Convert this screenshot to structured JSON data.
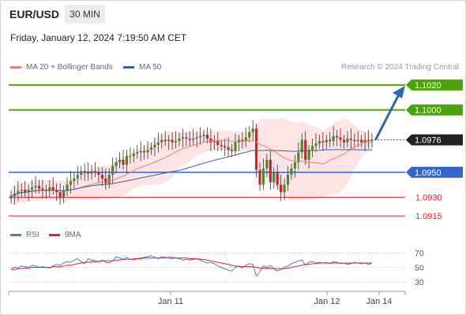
{
  "header": {
    "symbol": "EUR/USD",
    "timeframe": "30 MIN",
    "datetime": "Friday, January 12, 2024 7:19:50 AM CET"
  },
  "legend": {
    "ma20": "MA 20 + Bollinger Bands",
    "ma50": "MA 50",
    "credit": "Research © 2024 Trading Central"
  },
  "rsi_legend": {
    "rsi": "RSI",
    "ma9": "9MA"
  },
  "colors": {
    "green": "#4da30c",
    "blue": "#3366cc",
    "red": "#e8202a",
    "ma20": "#e8807a",
    "ma50": "#3f5f9c",
    "band": "#fde3e3",
    "candle_up": "#4a8a2a",
    "candle_down": "#c62828",
    "current": "#222222",
    "arrow": "#2f66b0"
  },
  "chart_data": [
    {
      "type": "candlestick",
      "title": "EUR/USD 30 MIN",
      "x_ticks": [
        "Jan 11",
        "Jan 12",
        "Jan 14"
      ],
      "ylim": [
        1.0905,
        1.1025
      ],
      "levels": [
        {
          "label": "1.1020",
          "value": 1.102,
          "kind": "resistance"
        },
        {
          "label": "1.1000",
          "value": 1.1,
          "kind": "resistance"
        },
        {
          "label": "1.0976",
          "value": 1.0976,
          "kind": "current"
        },
        {
          "label": "1.0950",
          "value": 1.095,
          "kind": "pivot"
        },
        {
          "label": "1.0930",
          "value": 1.093,
          "kind": "support"
        },
        {
          "label": "1.0915",
          "value": 1.0915,
          "kind": "support"
        }
      ],
      "forecast_target": 1.102,
      "closes": [
        1.0931,
        1.0933,
        1.0935,
        1.0936,
        1.0934,
        1.0936,
        1.0938,
        1.0939,
        1.0937,
        1.0936,
        1.0935,
        1.0938,
        1.0936,
        1.0934,
        1.093,
        1.0935,
        1.094,
        1.0943,
        1.0945,
        1.0948,
        1.0951,
        1.095,
        1.0949,
        1.0951,
        1.095,
        1.0948,
        1.0945,
        1.0941,
        1.0948,
        1.0955,
        1.0958,
        1.096,
        1.0956,
        1.0963,
        1.0963,
        1.0965,
        1.0966,
        1.0967,
        1.0966,
        1.0968,
        1.097,
        1.0972,
        1.0974,
        1.0976,
        1.0975,
        1.0976,
        1.0974,
        1.0975,
        1.0977,
        1.0978,
        1.0977,
        1.0976,
        1.0977,
        1.0978,
        1.0979,
        1.098,
        1.0977,
        1.0974,
        1.0975,
        1.0972,
        1.0971,
        1.097,
        1.0968,
        1.0967,
        1.0974,
        1.0976,
        1.0975,
        1.0978,
        1.0982,
        1.0985,
        1.0952,
        1.094,
        1.0953,
        1.096,
        1.0942,
        1.095,
        1.094,
        1.0934,
        1.094,
        1.0948,
        1.0953,
        1.0958,
        1.0966,
        1.0976,
        1.096,
        1.0968,
        1.0971,
        1.0973,
        1.0975,
        1.0974,
        1.0976,
        1.0975,
        1.0979,
        1.0978,
        1.0976,
        1.0974,
        1.0977,
        1.0976,
        1.0975,
        1.0976,
        1.0974,
        1.0976,
        1.0975,
        1.0976
      ]
    },
    {
      "type": "line",
      "title": "RSI",
      "series": [
        {
          "name": "RSI",
          "values": [
            48,
            50,
            49,
            52,
            51,
            50,
            53,
            52,
            50,
            51,
            50,
            49,
            52,
            54,
            53,
            56,
            58,
            57,
            60,
            62,
            58,
            55,
            62,
            60,
            59,
            58,
            60,
            57,
            56,
            59,
            65,
            63,
            61,
            64,
            61,
            60,
            62,
            63,
            64,
            65,
            66,
            64,
            62,
            65,
            64,
            63,
            62,
            63,
            62,
            60,
            61,
            60,
            61,
            62,
            60,
            58,
            56,
            57,
            55,
            52,
            50,
            48,
            46,
            45,
            50,
            52,
            49,
            53,
            55,
            54,
            38,
            44,
            52,
            50,
            53,
            48,
            45,
            47,
            50,
            52,
            55,
            57,
            59,
            60,
            53,
            57,
            58,
            56,
            57,
            56,
            57,
            55,
            58,
            57,
            55,
            56,
            54,
            55,
            57,
            56,
            55,
            56,
            54,
            56
          ]
        },
        {
          "name": "9MA",
          "values": [
            47,
            47,
            48,
            48,
            49,
            49,
            50,
            50,
            50,
            50,
            50,
            50,
            51,
            51,
            51,
            52,
            53,
            53,
            54,
            55,
            56,
            57,
            57,
            58,
            58,
            58,
            59,
            59,
            59,
            59,
            60,
            60,
            61,
            61,
            61,
            62,
            62,
            62,
            63,
            63,
            63,
            63,
            63,
            63,
            63,
            64,
            64,
            63,
            63,
            63,
            63,
            62,
            62,
            62,
            61,
            61,
            60,
            59,
            58,
            57,
            56,
            55,
            54,
            53,
            52,
            51,
            51,
            51,
            51,
            51,
            50,
            49,
            49,
            49,
            49,
            48,
            48,
            48,
            48,
            49,
            50,
            51,
            52,
            53,
            54,
            54,
            55,
            55,
            56,
            56,
            56,
            56,
            56,
            56,
            56,
            56,
            56,
            56,
            56,
            56,
            56,
            56,
            56,
            56
          ]
        }
      ],
      "ylim": [
        20,
        80
      ],
      "y_ticks": [
        "70",
        "50",
        "30"
      ],
      "levels": [
        70,
        50,
        30
      ]
    }
  ]
}
